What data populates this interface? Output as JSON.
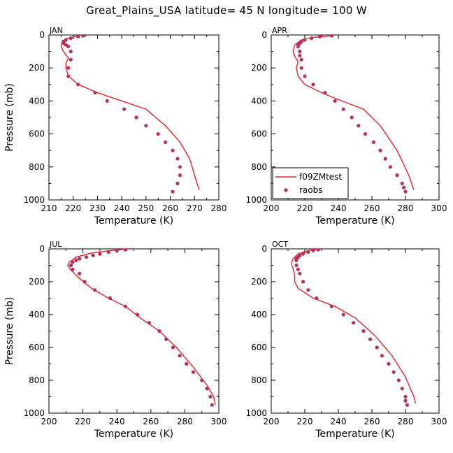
{
  "title": "Great_Plains_USA  latitude= 45 N longitude= 100 W",
  "colors": {
    "model": "#e8202a",
    "obs": "#b5305a"
  },
  "legend": {
    "model_label": "f09ZMtest",
    "obs_label": "raobs"
  },
  "chart_data": [
    {
      "type": "line",
      "label": "JAN",
      "xlabel": "Temperature (K)",
      "ylabel": "Pressure (mb)",
      "xlim": [
        210,
        280
      ],
      "ylim": [
        1000,
        0
      ],
      "xticks": [
        210,
        220,
        230,
        240,
        250,
        260,
        270,
        280
      ],
      "yticks": [
        0,
        200,
        400,
        600,
        800,
        1000
      ],
      "series": [
        {
          "name": "f09ZMtest",
          "kind": "line",
          "x": [
            222,
            218,
            215.5,
            215,
            216,
            218,
            217,
            217,
            218,
            222,
            230,
            240,
            250,
            258,
            264,
            268,
            271,
            272
          ],
          "y": [
            5,
            20,
            40,
            70,
            100,
            140,
            170,
            200,
            250,
            300,
            350,
            400,
            450,
            550,
            650,
            750,
            900,
            940
          ]
        },
        {
          "name": "raobs",
          "kind": "scatter",
          "x": [
            224,
            222,
            219,
            217,
            216,
            216,
            217,
            218,
            219,
            219,
            218,
            218,
            222,
            229,
            234,
            241,
            246,
            250,
            255,
            258,
            261,
            263,
            264,
            264,
            263,
            261
          ],
          "y": [
            5,
            10,
            20,
            30,
            40,
            50,
            60,
            70,
            100,
            150,
            200,
            250,
            300,
            350,
            400,
            450,
            500,
            550,
            600,
            650,
            700,
            750,
            800,
            850,
            900,
            950
          ]
        }
      ]
    },
    {
      "type": "line",
      "label": "APR",
      "xlabel": "Temperature (K)",
      "ylabel": "",
      "xlim": [
        200,
        300
      ],
      "ylim": [
        1000,
        0
      ],
      "xticks": [
        200,
        220,
        240,
        260,
        280,
        300
      ],
      "yticks": [
        0,
        200,
        400,
        600,
        800,
        1000
      ],
      "series": [
        {
          "name": "f09ZMtest",
          "kind": "line",
          "x": [
            236,
            225,
            218,
            214,
            213,
            214,
            216,
            215,
            216,
            220,
            230,
            242,
            255,
            265,
            275,
            282,
            285
          ],
          "y": [
            5,
            15,
            30,
            60,
            100,
            130,
            160,
            200,
            250,
            300,
            350,
            400,
            450,
            550,
            700,
            850,
            940
          ]
        },
        {
          "name": "raobs",
          "kind": "scatter",
          "x": [
            236,
            229,
            224,
            220,
            218,
            217,
            216,
            216,
            217,
            217,
            218,
            218,
            220,
            225,
            232,
            238,
            243,
            248,
            252,
            256,
            261,
            265,
            268,
            271,
            275,
            278,
            279,
            280
          ],
          "y": [
            5,
            10,
            20,
            30,
            40,
            50,
            60,
            70,
            100,
            125,
            150,
            200,
            250,
            300,
            350,
            400,
            450,
            500,
            550,
            600,
            650,
            700,
            750,
            800,
            850,
            900,
            925,
            950
          ]
        }
      ]
    },
    {
      "type": "line",
      "label": "JUL",
      "xlabel": "Temperature (K)",
      "ylabel": "Pressure (mb)",
      "xlim": [
        200,
        300
      ],
      "ylim": [
        1000,
        0
      ],
      "xticks": [
        200,
        220,
        240,
        260,
        280,
        300
      ],
      "yticks": [
        0,
        200,
        400,
        600,
        800,
        1000
      ],
      "series": [
        {
          "name": "f09ZMtest",
          "kind": "line",
          "x": [
            247,
            236,
            225,
            216,
            212,
            211,
            213,
            218,
            225,
            235,
            245,
            255,
            265,
            275,
            285,
            293,
            297,
            298
          ],
          "y": [
            0,
            10,
            25,
            50,
            80,
            100,
            130,
            180,
            240,
            300,
            350,
            430,
            500,
            600,
            720,
            830,
            900,
            950
          ]
        },
        {
          "name": "raobs",
          "kind": "scatter",
          "x": [
            245,
            240,
            235,
            230,
            226,
            222,
            218,
            216,
            214,
            213,
            214,
            218,
            221,
            227,
            236,
            245,
            252,
            259,
            265,
            269,
            273,
            277,
            281,
            285,
            290,
            293,
            295,
            296
          ],
          "y": [
            5,
            10,
            20,
            30,
            40,
            50,
            60,
            70,
            80,
            100,
            125,
            150,
            200,
            250,
            300,
            350,
            400,
            450,
            500,
            550,
            600,
            650,
            700,
            750,
            800,
            850,
            900,
            950
          ]
        }
      ]
    },
    {
      "type": "line",
      "label": "OCT",
      "xlabel": "Temperature (K)",
      "ylabel": "",
      "xlim": [
        200,
        300
      ],
      "ylim": [
        1000,
        0
      ],
      "xticks": [
        200,
        220,
        240,
        260,
        280,
        300
      ],
      "yticks": [
        0,
        200,
        400,
        600,
        800,
        1000
      ],
      "series": [
        {
          "name": "f09ZMtest",
          "kind": "line",
          "x": [
            228,
            222,
            216,
            213,
            212,
            213,
            214,
            214,
            216,
            225,
            238,
            250,
            262,
            272,
            280,
            285,
            286
          ],
          "y": [
            0,
            10,
            30,
            60,
            90,
            120,
            160,
            200,
            240,
            300,
            350,
            420,
            530,
            650,
            780,
            900,
            940
          ]
        },
        {
          "name": "raobs",
          "kind": "scatter",
          "x": [
            228,
            225,
            222,
            219,
            217,
            216,
            215,
            215,
            215,
            216,
            217,
            219,
            222,
            227,
            236,
            243,
            249,
            255,
            259,
            263,
            266,
            270,
            273,
            276,
            278,
            280,
            280,
            281
          ],
          "y": [
            5,
            10,
            20,
            30,
            40,
            50,
            60,
            70,
            100,
            125,
            150,
            200,
            250,
            300,
            350,
            400,
            450,
            500,
            550,
            600,
            650,
            700,
            750,
            800,
            850,
            900,
            925,
            950
          ]
        }
      ]
    }
  ]
}
